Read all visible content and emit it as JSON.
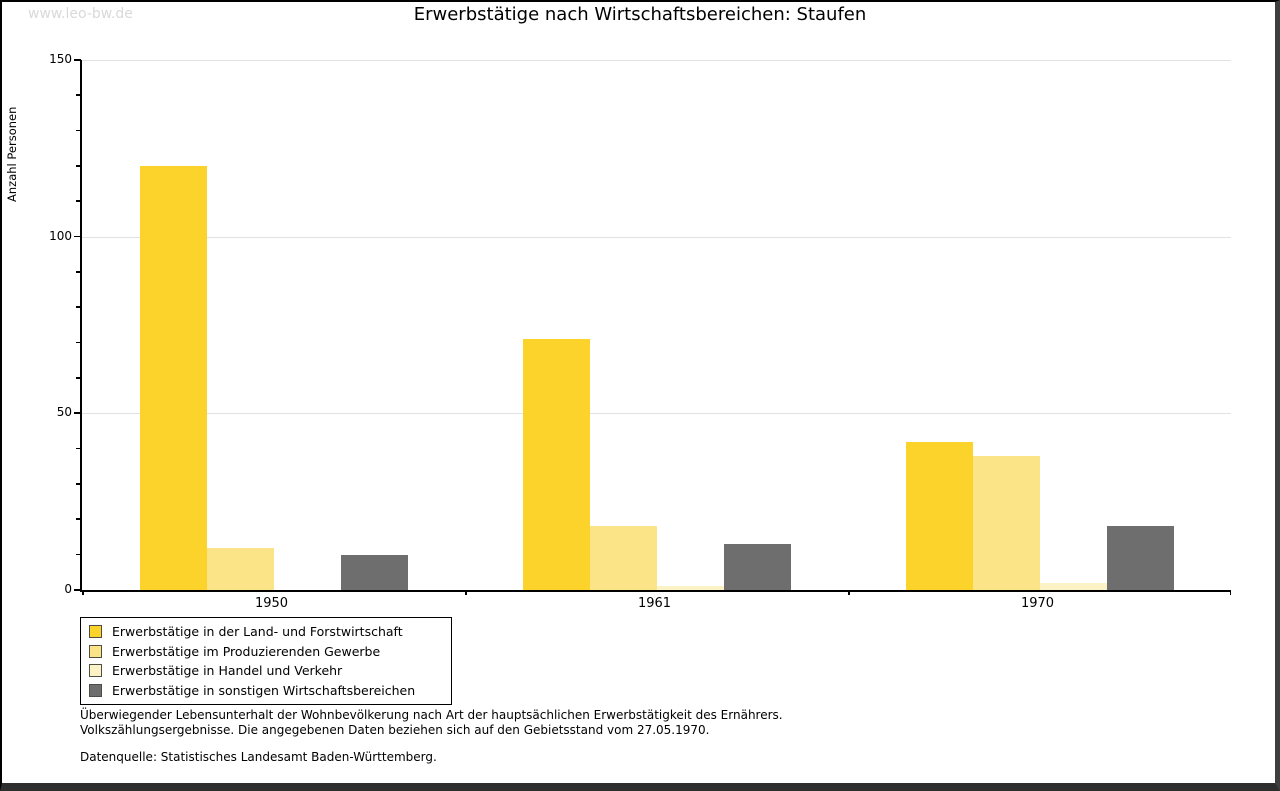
{
  "watermark": "www.leo-bw.de",
  "header": {
    "title": "Erwerbstätige nach Wirtschaftsbereichen: Staufen"
  },
  "chart_data": {
    "type": "bar",
    "title": "Erwerbstätige nach Wirtschaftsbereichen: Staufen",
    "ylabel": "Anzahl Personen",
    "xlabel": "",
    "categories": [
      "1950",
      "1961",
      "1970"
    ],
    "series": [
      {
        "name": "Erwerbstätige in der Land- und Forstwirtschaft",
        "color": "#FBD32B",
        "values": [
          120,
          71,
          42
        ]
      },
      {
        "name": "Erwerbstätige im Produzierenden Gewerbe",
        "color": "#FBE487",
        "values": [
          12,
          18,
          38
        ]
      },
      {
        "name": "Erwerbstätige in Handel und Verkehr",
        "color": "#FBF2C6",
        "values": [
          0,
          1,
          2
        ]
      },
      {
        "name": "Erwerbstätige in sonstigen Wirtschaftsbereichen",
        "color": "#6E6E6E",
        "values": [
          10,
          13,
          18
        ]
      }
    ],
    "ylim": [
      0,
      150
    ],
    "yticks": [
      0,
      50,
      100,
      150
    ],
    "minor_tick_step": 10,
    "grid": true,
    "legend_position": "bottom-left",
    "axis_color": "#000000",
    "gridline_color": "#e2e2e2"
  },
  "notes": {
    "line1": "Überwiegender Lebensunterhalt der Wohnbevölkerung nach Art der hauptsächlichen Erwerbstätigkeit des Ernährers.",
    "line2": "Volkszählungsergebnisse. Die angegebenen Daten beziehen sich auf den Gebietsstand vom 27.05.1970.",
    "source": "Datenquelle: Statistisches Landesamt Baden-Württemberg."
  }
}
